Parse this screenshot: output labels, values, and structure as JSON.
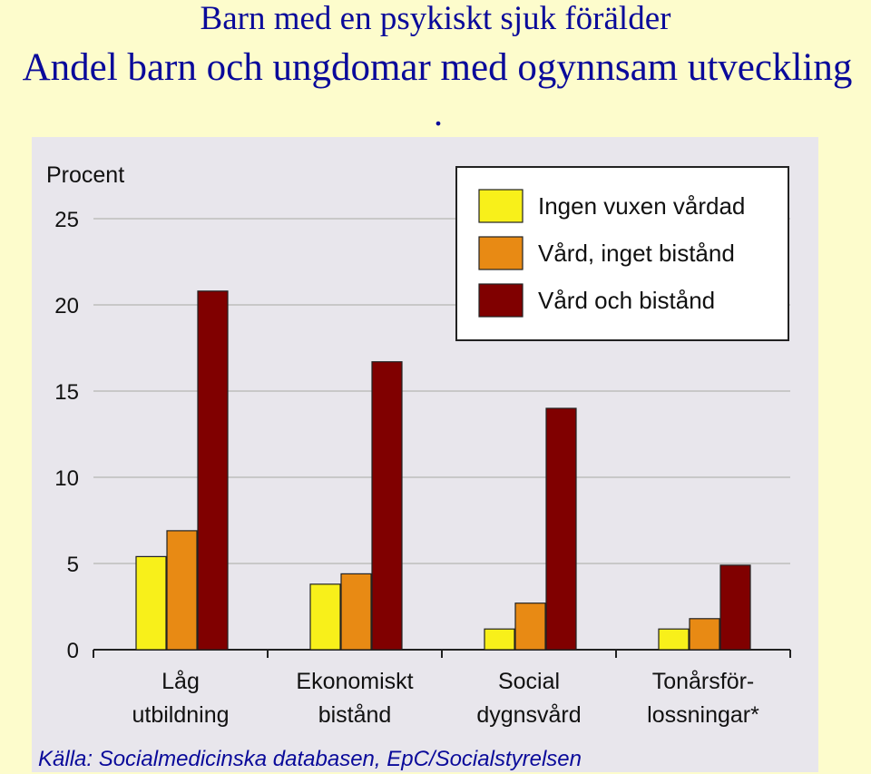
{
  "header": {
    "title": "Barn med en psykiskt sjuk förälder",
    "subtitle": "Andel barn och ungdomar med ogynnsam utveckling",
    "trailing_mark": "."
  },
  "footer": {
    "source": "Källa: Socialmedicinska databasen, EpC/Socialstyrelsen"
  },
  "chart_data": {
    "type": "bar",
    "title": "",
    "ylabel": "Procent",
    "xlabel": "",
    "ylim": [
      0,
      25
    ],
    "yticks": [
      0,
      5,
      10,
      15,
      20,
      25
    ],
    "grid": true,
    "legend_position": "top-right",
    "categories": [
      [
        "Låg",
        "utbildning"
      ],
      [
        "Ekonomiskt",
        "bistånd"
      ],
      [
        "Social",
        "dygnsvård"
      ],
      [
        "Tonårsför-",
        "lossningar*"
      ]
    ],
    "series": [
      {
        "name": "Ingen vuxen vårdad",
        "color": "#f8f01a",
        "values": [
          5.4,
          3.8,
          1.2,
          1.2
        ]
      },
      {
        "name": "Vård, inget bistånd",
        "color": "#e88a14",
        "values": [
          6.9,
          4.4,
          2.7,
          1.8
        ]
      },
      {
        "name": "Vård och bistånd",
        "color": "#800000",
        "values": [
          20.8,
          16.7,
          14.0,
          4.9
        ]
      }
    ]
  }
}
